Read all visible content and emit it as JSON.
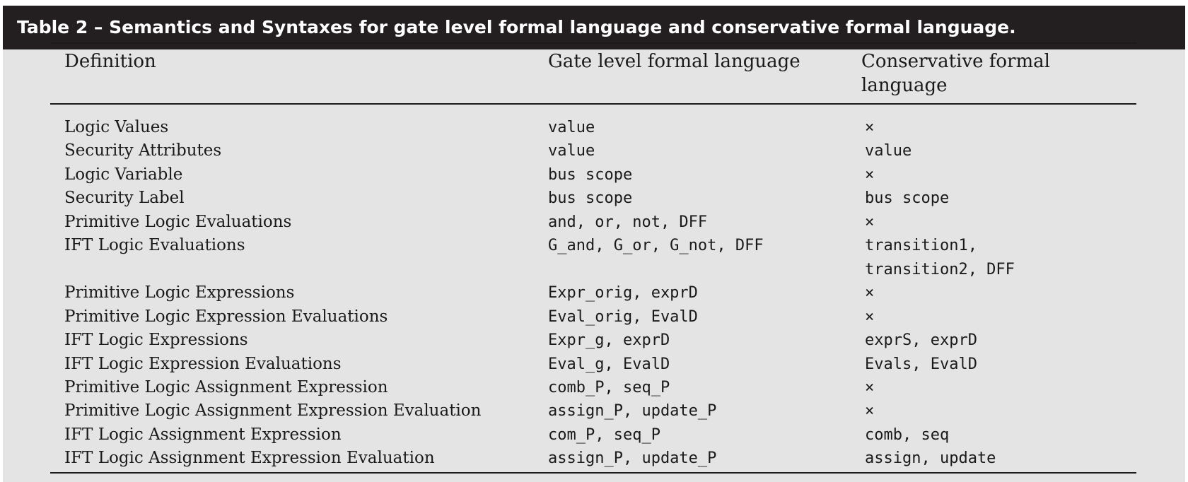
{
  "table": {
    "caption": "Table 2 – Semantics and Syntaxes for gate level formal language and conservative formal language.",
    "headers": [
      "Definition",
      "Gate level formal language",
      "Conservative formal language"
    ],
    "rows": [
      {
        "definition": "Logic Values",
        "gate": "value",
        "conservative": "×"
      },
      {
        "definition": "Security Attributes",
        "gate": "value",
        "conservative": "value"
      },
      {
        "definition": "Logic Variable",
        "gate": "bus scope",
        "conservative": "×"
      },
      {
        "definition": "Security Label",
        "gate": "bus scope",
        "conservative": "bus scope"
      },
      {
        "definition": "Primitive Logic Evaluations",
        "gate": "and, or, not, DFF",
        "conservative": "×"
      },
      {
        "definition": "IFT Logic Evaluations",
        "gate": "G_and, G_or, G_not, DFF",
        "conservative": "transition1, transition2, DFF"
      },
      {
        "definition": "Primitive Logic Expressions",
        "gate": "Expr_orig, exprD",
        "conservative": "×"
      },
      {
        "definition": "Primitive Logic Expression Evaluations",
        "gate": "Eval_orig, EvalD",
        "conservative": "×"
      },
      {
        "definition": "IFT Logic Expressions",
        "gate": "Expr_g, exprD",
        "conservative": "exprS, exprD"
      },
      {
        "definition": "IFT Logic Expression Evaluations",
        "gate": "Eval_g, EvalD",
        "conservative": "Evals, EvalD"
      },
      {
        "definition": "Primitive Logic Assignment Expression",
        "gate": "comb_P, seq_P",
        "conservative": "×"
      },
      {
        "definition": "Primitive Logic Assignment Expression Evaluation",
        "gate": "assign_P, update_P",
        "conservative": "×"
      },
      {
        "definition": "IFT Logic Assignment Expression",
        "gate": "com_P, seq_P",
        "conservative": "comb, seq"
      },
      {
        "definition": "IFT Logic Assignment Expression Evaluation",
        "gate": "assign_P, update_P",
        "conservative": "assign, update"
      }
    ]
  }
}
